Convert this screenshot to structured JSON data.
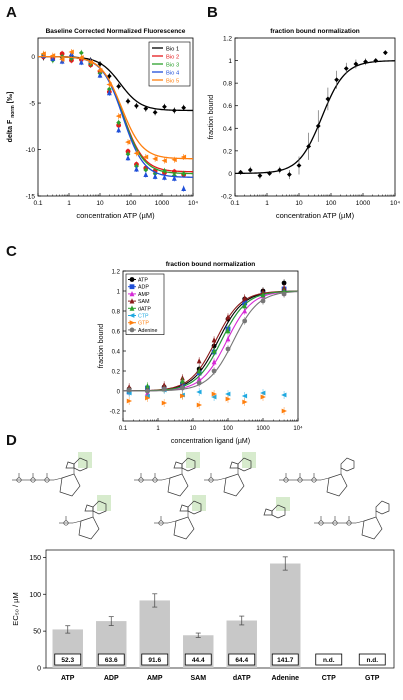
{
  "panels": [
    {
      "letter": "A"
    },
    {
      "letter": "B"
    },
    {
      "letter": "C"
    },
    {
      "letter": "D"
    }
  ],
  "colors": {
    "black": "#000000",
    "red": "#e41a1c",
    "orange": "#ff7f0e",
    "green": "#2ca02c",
    "blue": "#1f4fd8",
    "magenta": "#d62ad6",
    "maroon": "#8b1a1a",
    "cyan": "#1fa9e0",
    "gray": "#777777",
    "bar": "#c8c8c8",
    "highlight": "#d7ebcd"
  },
  "chart_data": [
    {
      "id": "A",
      "type": "line",
      "title": "Baseline Corrected Normalized Fluorescence",
      "xlabel": "concentration ATP (µM)",
      "ylabel": "delta F_norm [‰]",
      "ylabel_main": "delta F",
      "ylabel_sub": "norm",
      "ylabel_unit": "[‰]",
      "xscale": "log",
      "xlim": [
        0.1,
        10000
      ],
      "ylim": [
        -15,
        2
      ],
      "xticks": [
        "0.1",
        "1",
        "10",
        "100",
        "1000",
        "10⁴"
      ],
      "yticks": [
        0,
        -5,
        -10,
        -15
      ],
      "legend": {
        "position": "top-right"
      },
      "series": [
        {
          "name": "Bio 1",
          "color": "#000000",
          "bottom": -5.8,
          "ec50": 45,
          "points": [
            [
              0.15,
              -0.1
            ],
            [
              0.3,
              -0.3
            ],
            [
              0.6,
              -0.1
            ],
            [
              1.2,
              0.1
            ],
            [
              2.5,
              -0.2
            ],
            [
              5,
              -0.4
            ],
            [
              10,
              -0.8
            ],
            [
              20,
              -2.1
            ],
            [
              40,
              -3.2
            ],
            [
              80,
              -4.8
            ],
            [
              150,
              -5.3
            ],
            [
              300,
              -5.6
            ],
            [
              600,
              -6.0
            ],
            [
              1200,
              -5.4
            ],
            [
              2500,
              -5.8
            ],
            [
              5000,
              -5.5
            ]
          ]
        },
        {
          "name": "Bio 2",
          "color": "#e41a1c",
          "bottom": -12.4,
          "ec50": 55,
          "points": [
            [
              0.15,
              0.0
            ],
            [
              0.3,
              -0.2
            ],
            [
              0.6,
              0.3
            ],
            [
              1.2,
              -0.4
            ],
            [
              2.5,
              -0.3
            ],
            [
              5,
              -0.9
            ],
            [
              10,
              -1.6
            ],
            [
              20,
              -3.8
            ],
            [
              40,
              -7.4
            ],
            [
              80,
              -10.2
            ],
            [
              150,
              -11.6
            ],
            [
              300,
              -12.0
            ],
            [
              600,
              -12.3
            ],
            [
              1200,
              -12.5
            ],
            [
              2500,
              -12.4
            ],
            [
              5000,
              -12.7
            ]
          ]
        },
        {
          "name": "Bio 3",
          "color": "#2ca02c",
          "bottom": -12.6,
          "ec50": 55,
          "points": [
            [
              0.15,
              0.2
            ],
            [
              0.3,
              -0.4
            ],
            [
              0.6,
              0.0
            ],
            [
              1.2,
              -0.2
            ],
            [
              2.5,
              0.4
            ],
            [
              5,
              -0.8
            ],
            [
              10,
              -1.8
            ],
            [
              20,
              -3.5
            ],
            [
              40,
              -7.1
            ],
            [
              80,
              -10.5
            ],
            [
              150,
              -11.8
            ],
            [
              300,
              -12.2
            ],
            [
              600,
              -12.6
            ],
            [
              1200,
              -12.3
            ],
            [
              2500,
              -12.8
            ],
            [
              5000,
              -12.6
            ]
          ]
        },
        {
          "name": "Bio 4",
          "color": "#1f4fd8",
          "bottom": -13.0,
          "ec50": 55,
          "points": [
            [
              0.15,
              0.1
            ],
            [
              0.3,
              -0.2
            ],
            [
              0.6,
              -0.5
            ],
            [
              1.2,
              0.3
            ],
            [
              2.5,
              -0.6
            ],
            [
              5,
              -0.5
            ],
            [
              10,
              -2.0
            ],
            [
              20,
              -3.9
            ],
            [
              40,
              -7.9
            ],
            [
              80,
              -10.9
            ],
            [
              150,
              -12.1
            ],
            [
              300,
              -12.7
            ],
            [
              600,
              -12.9
            ],
            [
              1200,
              -13.0
            ],
            [
              2500,
              -13.1
            ],
            [
              5000,
              -14.2
            ]
          ]
        },
        {
          "name": "Bio 5",
          "color": "#ff7f0e",
          "bottom": -11.0,
          "ec50": 50,
          "points": [
            [
              0.15,
              0.3
            ],
            [
              0.3,
              0.1
            ],
            [
              0.6,
              -0.3
            ],
            [
              1.2,
              0.5
            ],
            [
              2.5,
              -0.1
            ],
            [
              5,
              -0.6
            ],
            [
              10,
              -1.5
            ],
            [
              20,
              -3.0
            ],
            [
              40,
              -6.4
            ],
            [
              80,
              -9.2
            ],
            [
              150,
              -10.4
            ],
            [
              300,
              -10.8
            ],
            [
              600,
              -11.0
            ],
            [
              1200,
              -11.2
            ],
            [
              2500,
              -11.1
            ],
            [
              5000,
              -10.8
            ]
          ]
        }
      ]
    },
    {
      "id": "B",
      "type": "line",
      "title": "fraction bound normalization",
      "xlabel": "concentration ATP (µM)",
      "ylabel": "fraction bound",
      "xscale": "log",
      "xlim": [
        0.1,
        10000
      ],
      "ylim": [
        -0.2,
        1.2
      ],
      "xticks": [
        "0.1",
        "1",
        "10",
        "100",
        "1000",
        "10⁴"
      ],
      "yticks": [
        "1.2",
        "1",
        "0.8",
        "0.6",
        "0.4",
        "0.2",
        "0",
        "-0.2"
      ],
      "series": [
        {
          "name": "",
          "color": "#000000",
          "ec50": 52,
          "hill": 1.2,
          "points": [
            [
              0.15,
              0.01
            ],
            [
              0.3,
              0.03
            ],
            [
              0.6,
              -0.02
            ],
            [
              1.2,
              0.0
            ],
            [
              2.5,
              0.03
            ],
            [
              5,
              -0.01
            ],
            [
              10,
              0.07
            ],
            [
              20,
              0.24
            ],
            [
              40,
              0.42
            ],
            [
              80,
              0.66
            ],
            [
              150,
              0.83
            ],
            [
              300,
              0.93
            ],
            [
              600,
              0.97
            ],
            [
              1200,
              0.99
            ],
            [
              2500,
              1.0
            ],
            [
              5000,
              1.07
            ]
          ],
          "err": [
            0.02,
            0.03,
            0.03,
            0.02,
            0.03,
            0.04,
            0.08,
            0.12,
            0.14,
            0.1,
            0.08,
            0.05,
            0.04,
            0.03,
            0.02,
            0.02
          ]
        }
      ]
    },
    {
      "id": "C",
      "type": "line",
      "title": "fraction bound normalization",
      "xlabel": "concentration ligand (µM)",
      "ylabel": "fraction bound",
      "xscale": "log",
      "xlim": [
        0.1,
        10000
      ],
      "ylim": [
        -0.3,
        1.2
      ],
      "xticks": [
        "0.1",
        "1",
        "10",
        "100",
        "1000",
        "10⁴"
      ],
      "yticks": [
        "1.2",
        "1",
        "0.8",
        "0.6",
        "0.4",
        "0.2",
        "0",
        "-0.2"
      ],
      "legend": {
        "position": "top-left"
      },
      "series": [
        {
          "name": "ATP",
          "color": "#000000",
          "marker": "circle",
          "ec50": 52,
          "points": [
            [
              0.15,
              0.02
            ],
            [
              0.5,
              0.0
            ],
            [
              1.5,
              0.04
            ],
            [
              5,
              0.08
            ],
            [
              15,
              0.22
            ],
            [
              40,
              0.45
            ],
            [
              100,
              0.72
            ],
            [
              300,
              0.92
            ],
            [
              1000,
              1.0
            ],
            [
              4000,
              1.08
            ]
          ]
        },
        {
          "name": "ADP",
          "color": "#1f4fd8",
          "marker": "square",
          "ec50": 64,
          "points": [
            [
              0.15,
              -0.01
            ],
            [
              0.5,
              0.03
            ],
            [
              1.5,
              0.02
            ],
            [
              5,
              0.06
            ],
            [
              15,
              0.18
            ],
            [
              40,
              0.39
            ],
            [
              100,
              0.62
            ],
            [
              300,
              0.88
            ],
            [
              1000,
              0.97
            ],
            [
              4000,
              1.02
            ]
          ]
        },
        {
          "name": "AMP",
          "color": "#d62ad6",
          "marker": "triangle",
          "ec50": 92,
          "points": [
            [
              0.15,
              0.0
            ],
            [
              0.5,
              -0.02
            ],
            [
              1.5,
              0.03
            ],
            [
              5,
              0.04
            ],
            [
              15,
              0.12
            ],
            [
              40,
              0.29
            ],
            [
              100,
              0.52
            ],
            [
              300,
              0.8
            ],
            [
              1000,
              0.95
            ],
            [
              4000,
              0.98
            ]
          ]
        },
        {
          "name": "SAM",
          "color": "#8b1a1a",
          "marker": "triangle",
          "ec50": 44,
          "points": [
            [
              0.15,
              0.04
            ],
            [
              0.5,
              0.02
            ],
            [
              1.5,
              0.06
            ],
            [
              5,
              0.13
            ],
            [
              15,
              0.3
            ],
            [
              40,
              0.51
            ],
            [
              100,
              0.74
            ],
            [
              300,
              0.93
            ],
            [
              1000,
              0.99
            ],
            [
              4000,
              1.03
            ]
          ]
        },
        {
          "name": "dATP",
          "color": "#2ca02c",
          "marker": "triangle",
          "ec50": 64,
          "points": [
            [
              0.15,
              0.0
            ],
            [
              0.5,
              0.05
            ],
            [
              1.5,
              0.02
            ],
            [
              5,
              0.1
            ],
            [
              15,
              0.2
            ],
            [
              40,
              0.4
            ],
            [
              100,
              0.6
            ],
            [
              300,
              0.85
            ],
            [
              1000,
              0.96
            ],
            [
              4000,
              1.0
            ]
          ]
        },
        {
          "name": "CTP",
          "color": "#1fa9e0",
          "marker": "triangle-left",
          "ec50": null,
          "points": [
            [
              0.15,
              -0.02
            ],
            [
              0.5,
              -0.05
            ],
            [
              1.5,
              0.01
            ],
            [
              5,
              -0.04
            ],
            [
              15,
              -0.01
            ],
            [
              40,
              -0.06
            ],
            [
              100,
              -0.03
            ],
            [
              300,
              -0.05
            ],
            [
              1000,
              -0.02
            ],
            [
              4000,
              -0.04
            ]
          ]
        },
        {
          "name": "GTP",
          "color": "#ff7f0e",
          "marker": "triangle-right",
          "ec50": null,
          "points": [
            [
              0.15,
              -0.1
            ],
            [
              0.5,
              -0.07
            ],
            [
              1.5,
              -0.12
            ],
            [
              5,
              -0.05
            ],
            [
              15,
              -0.14
            ],
            [
              40,
              -0.03
            ],
            [
              100,
              -0.08
            ],
            [
              300,
              -0.11
            ],
            [
              1000,
              -0.06
            ],
            [
              4000,
              -0.2
            ]
          ]
        },
        {
          "name": "Adenine",
          "color": "#777777",
          "marker": "line",
          "ec50": 142,
          "points": [
            [
              0.15,
              0.01
            ],
            [
              0.5,
              0.0
            ],
            [
              1.5,
              0.02
            ],
            [
              5,
              0.03
            ],
            [
              15,
              0.08
            ],
            [
              40,
              0.2
            ],
            [
              100,
              0.42
            ],
            [
              300,
              0.7
            ],
            [
              1000,
              0.9
            ],
            [
              4000,
              0.97
            ]
          ]
        }
      ]
    },
    {
      "id": "D",
      "type": "bar",
      "ylabel": "EC₅₀ / µM",
      "ylim": [
        0,
        160
      ],
      "yticks": [
        "0",
        "50",
        "100",
        "150"
      ],
      "categories": [
        "ATP",
        "ADP",
        "AMP",
        "SAM",
        "dATP",
        "Adenine",
        "CTP",
        "GTP"
      ],
      "values": [
        52.3,
        63.6,
        91.6,
        44.4,
        64.4,
        141.7,
        null,
        null
      ],
      "errors": [
        5,
        6,
        9,
        3,
        6,
        9,
        null,
        null
      ],
      "value_labels": [
        "52.3",
        "63.6",
        "91.6",
        "44.4",
        "64.4",
        "141.7",
        "n.d.",
        "n.d."
      ]
    }
  ]
}
